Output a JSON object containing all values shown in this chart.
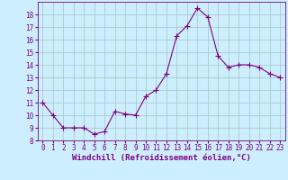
{
  "x": [
    0,
    1,
    2,
    3,
    4,
    5,
    6,
    7,
    8,
    9,
    10,
    11,
    12,
    13,
    14,
    15,
    16,
    17,
    18,
    19,
    20,
    21,
    22,
    23
  ],
  "y": [
    11,
    10,
    9,
    9,
    9,
    8.5,
    8.7,
    10.3,
    10.1,
    10,
    11.5,
    12,
    13.3,
    16.3,
    17.1,
    18.5,
    17.8,
    14.7,
    13.8,
    14,
    14,
    13.8,
    13.3,
    13
  ],
  "line_color": "#800080",
  "marker": "D",
  "marker_size": 2.0,
  "bg_color": "#cceeff",
  "grid_color": "#aacccc",
  "xlabel": "Windchill (Refroidissement éolien,°C)",
  "xlabel_color": "#800080",
  "ylim": [
    8,
    19
  ],
  "xlim": [
    -0.5,
    23.5
  ],
  "yticks": [
    8,
    9,
    10,
    11,
    12,
    13,
    14,
    15,
    16,
    17,
    18
  ],
  "xticks": [
    0,
    1,
    2,
    3,
    4,
    5,
    6,
    7,
    8,
    9,
    10,
    11,
    12,
    13,
    14,
    15,
    16,
    17,
    18,
    19,
    20,
    21,
    22,
    23
  ],
  "tick_color": "#800080",
  "tick_fontsize": 5.5,
  "xlabel_fontsize": 6.5
}
